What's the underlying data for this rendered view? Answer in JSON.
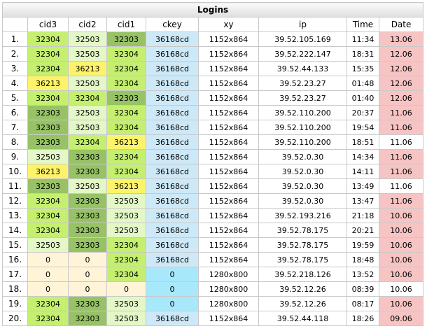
{
  "title": "Logins",
  "columns": [
    "",
    "cid3",
    "cid2",
    "cid1",
    "ckey",
    "xy",
    "ip",
    "Time",
    "Date"
  ],
  "colors": {
    "cid_32303": "#97c266",
    "cid_32304": "#c5ef6f",
    "cid_32503": "#e3f7c7",
    "cid_36213": "#fdf36a",
    "cid_zero": "#fff4d7",
    "ckey_36168cd": "#cde9f8",
    "ckey_zero": "#a7e8fb",
    "date_highlight": "#f7c4c4",
    "date_plain": "#ffffff"
  },
  "rows": [
    {
      "n": "1.",
      "cid3": "32304",
      "cid2": "32503",
      "cid1": "32303",
      "ckey": "36168cd",
      "xy": "1152x864",
      "ip": "39.52.105.169",
      "time": "11:34",
      "date": "13.06",
      "date_red": true
    },
    {
      "n": "2.",
      "cid3": "32304",
      "cid2": "32503",
      "cid1": "32304",
      "ckey": "36168cd",
      "xy": "1152x864",
      "ip": "39.52.222.147",
      "time": "18:31",
      "date": "12.06",
      "date_red": true
    },
    {
      "n": "3.",
      "cid3": "32304",
      "cid2": "36213",
      "cid1": "32304",
      "ckey": "36168cd",
      "xy": "1152x864",
      "ip": "39.52.44.133",
      "time": "15:35",
      "date": "12.06",
      "date_red": true
    },
    {
      "n": "4.",
      "cid3": "36213",
      "cid2": "32503",
      "cid1": "32304",
      "ckey": "36168cd",
      "xy": "1152x864",
      "ip": "39.52.23.27",
      "time": "01:48",
      "date": "12.06",
      "date_red": true
    },
    {
      "n": "5.",
      "cid3": "32304",
      "cid2": "32304",
      "cid1": "32303",
      "ckey": "36168cd",
      "xy": "1152x864",
      "ip": "39.52.23.27",
      "time": "01:40",
      "date": "12.06",
      "date_red": true
    },
    {
      "n": "6.",
      "cid3": "32303",
      "cid2": "32503",
      "cid1": "32304",
      "ckey": "36168cd",
      "xy": "1152x864",
      "ip": "39.52.110.200",
      "time": "20:37",
      "date": "11.06",
      "date_red": true
    },
    {
      "n": "7.",
      "cid3": "32303",
      "cid2": "32503",
      "cid1": "32304",
      "ckey": "36168cd",
      "xy": "1152x864",
      "ip": "39.52.110.200",
      "time": "19:54",
      "date": "11.06",
      "date_red": true
    },
    {
      "n": "8.",
      "cid3": "32303",
      "cid2": "32304",
      "cid1": "36213",
      "ckey": "36168cd",
      "xy": "1152x864",
      "ip": "39.52.110.200",
      "time": "18:51",
      "date": "11.06",
      "date_red": false
    },
    {
      "n": "9.",
      "cid3": "32503",
      "cid2": "32303",
      "cid1": "32304",
      "ckey": "36168cd",
      "xy": "1152x864",
      "ip": "39.52.0.30",
      "time": "14:34",
      "date": "11.06",
      "date_red": true
    },
    {
      "n": "10.",
      "cid3": "36213",
      "cid2": "32303",
      "cid1": "32304",
      "ckey": "36168cd",
      "xy": "1152x864",
      "ip": "39.52.0.30",
      "time": "14:11",
      "date": "11.06",
      "date_red": true
    },
    {
      "n": "11.",
      "cid3": "32303",
      "cid2": "32503",
      "cid1": "36213",
      "ckey": "36168cd",
      "xy": "1152x864",
      "ip": "39.52.0.30",
      "time": "13:49",
      "date": "11.06",
      "date_red": false
    },
    {
      "n": "12.",
      "cid3": "32304",
      "cid2": "32303",
      "cid1": "32503",
      "ckey": "36168cd",
      "xy": "1152x864",
      "ip": "39.52.0.30",
      "time": "13:47",
      "date": "11.06",
      "date_red": true
    },
    {
      "n": "13.",
      "cid3": "32304",
      "cid2": "32303",
      "cid1": "32503",
      "ckey": "36168cd",
      "xy": "1152x864",
      "ip": "39.52.193.216",
      "time": "21:18",
      "date": "10.06",
      "date_red": true
    },
    {
      "n": "14.",
      "cid3": "32304",
      "cid2": "32303",
      "cid1": "32503",
      "ckey": "36168cd",
      "xy": "1152x864",
      "ip": "39.52.78.175",
      "time": "20:21",
      "date": "10.06",
      "date_red": true
    },
    {
      "n": "15.",
      "cid3": "32503",
      "cid2": "32303",
      "cid1": "32304",
      "ckey": "36168cd",
      "xy": "1152x864",
      "ip": "39.52.78.175",
      "time": "19:59",
      "date": "10.06",
      "date_red": true
    },
    {
      "n": "16.",
      "cid3": "0",
      "cid2": "0",
      "cid1": "32304",
      "ckey": "36168cd",
      "xy": "1152x864",
      "ip": "39.52.78.175",
      "time": "18:48",
      "date": "10.06",
      "date_red": true
    },
    {
      "n": "17.",
      "cid3": "0",
      "cid2": "0",
      "cid1": "32304",
      "ckey": "0",
      "xy": "1280x800",
      "ip": "39.52.218.126",
      "time": "13:52",
      "date": "10.06",
      "date_red": true
    },
    {
      "n": "18.",
      "cid3": "0",
      "cid2": "0",
      "cid1": "0",
      "ckey": "0",
      "xy": "1280x800",
      "ip": "39.52.12.26",
      "time": "08:39",
      "date": "10.06",
      "date_red": false
    },
    {
      "n": "19.",
      "cid3": "32304",
      "cid2": "32303",
      "cid1": "32503",
      "ckey": "0",
      "xy": "1280x800",
      "ip": "39.52.12.26",
      "time": "08:17",
      "date": "10.06",
      "date_red": true
    },
    {
      "n": "20.",
      "cid3": "32304",
      "cid2": "32303",
      "cid1": "32503",
      "ckey": "36168cd",
      "xy": "1152x864",
      "ip": "39.52.44.118",
      "time": "18:26",
      "date": "09.06",
      "date_red": true
    }
  ]
}
